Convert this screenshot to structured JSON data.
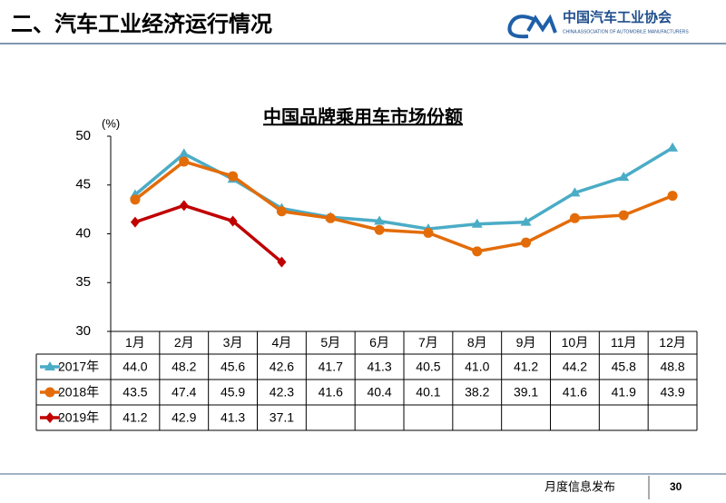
{
  "header": {
    "title": "二、汽车工业经济运行情况",
    "logo_cn": "中国汽车工业协会",
    "logo_en": "CHINA ASSOCIATION OF AUTOMOBILE MANUFACTURERS"
  },
  "footer": {
    "text": "月度信息发布",
    "page": 30
  },
  "chart_data": {
    "type": "line",
    "title": "中国品牌乘用车市场份额",
    "y_label": "(%)",
    "categories": [
      "1月",
      "2月",
      "3月",
      "4月",
      "5月",
      "6月",
      "7月",
      "8月",
      "9月",
      "10月",
      "11月",
      "12月"
    ],
    "ylim": [
      30,
      50
    ],
    "yticks": [
      30,
      35,
      40,
      45,
      50
    ],
    "grid": false,
    "series": [
      {
        "name": "2017年",
        "color": "#4bacc6",
        "marker": "triangle",
        "values": [
          44.0,
          48.2,
          45.6,
          42.6,
          41.7,
          41.3,
          40.5,
          41.0,
          41.2,
          44.2,
          45.8,
          48.8
        ],
        "value_labels": [
          "44.0",
          "48.2",
          "45.6",
          "42.6",
          "41.7",
          "41.3",
          "40.5",
          "41.0",
          "41.2",
          "44.2",
          "45.8",
          "48.8"
        ]
      },
      {
        "name": "2018年",
        "color": "#e36c09",
        "marker": "circle",
        "values": [
          43.5,
          47.4,
          45.9,
          42.3,
          41.6,
          40.4,
          40.1,
          38.2,
          39.1,
          41.6,
          41.9,
          43.9
        ],
        "value_labels": [
          "43.5",
          "47.4",
          "45.9",
          "42.3",
          "41.6",
          "40.4",
          "40.1",
          "38.2",
          "39.1",
          "41.6",
          "41.9",
          "43.9"
        ]
      },
      {
        "name": "2019年",
        "color": "#c00000",
        "marker": "diamond",
        "values": [
          41.2,
          42.9,
          41.3,
          37.1,
          null,
          null,
          null,
          null,
          null,
          null,
          null,
          null
        ],
        "value_labels": [
          "41.2",
          "42.9",
          "41.3",
          "37.1",
          null,
          null,
          null,
          null,
          null,
          null,
          null,
          null
        ]
      }
    ]
  }
}
